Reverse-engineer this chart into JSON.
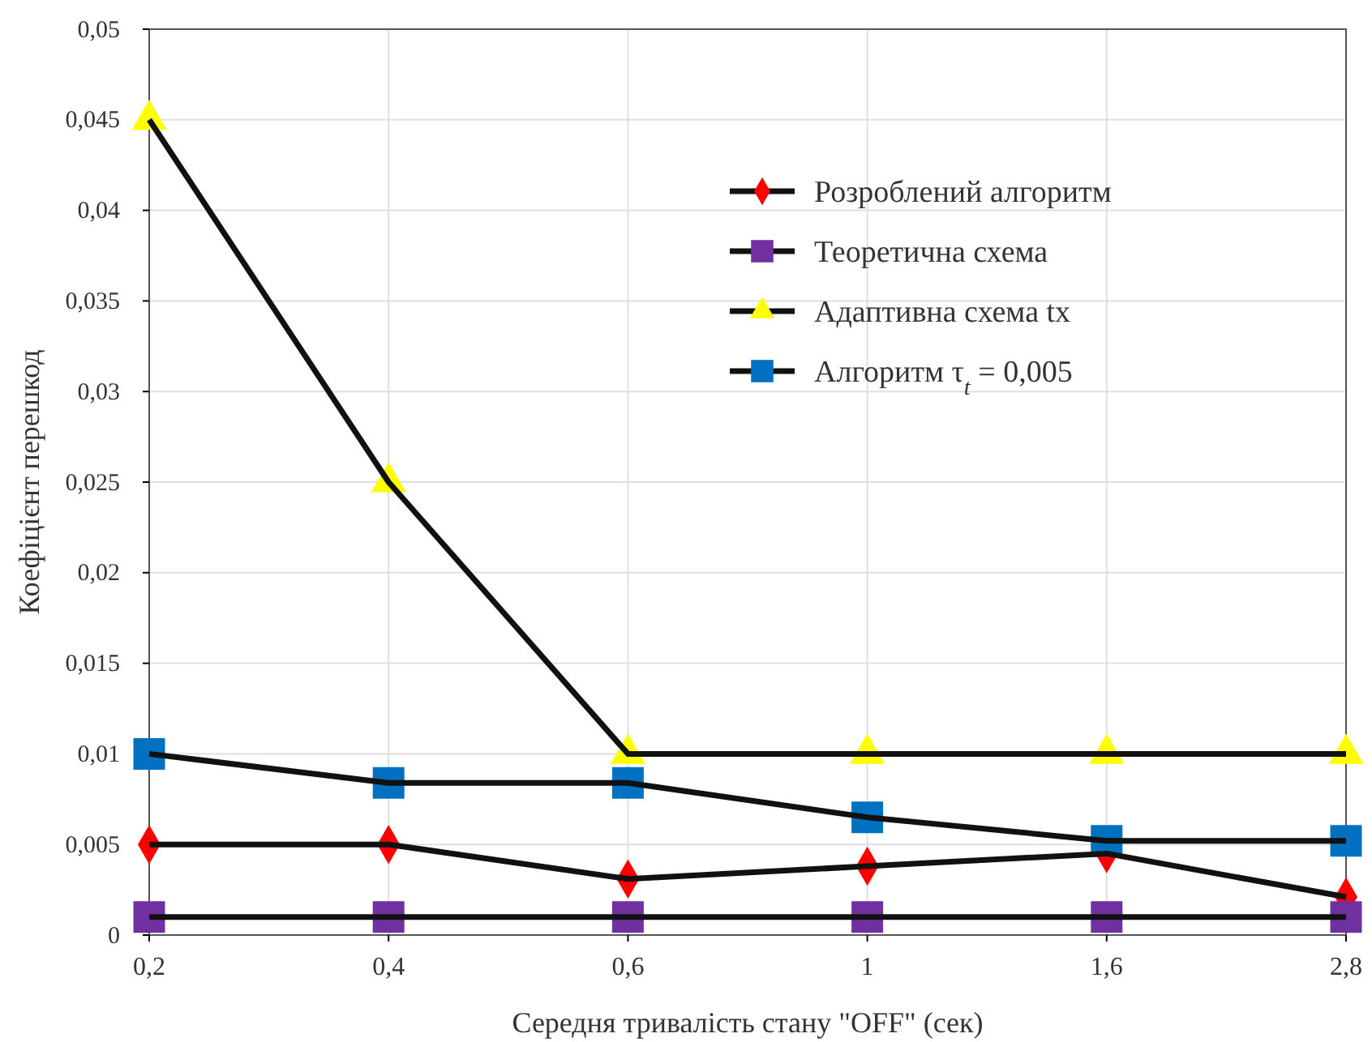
{
  "chart_data": {
    "type": "line",
    "xlabel": "Середня тривалість стану \"OFF\" (сек)",
    "ylabel": "Коефіцієнт перешкод",
    "categories": [
      "0,2",
      "0,4",
      "0,6",
      "1",
      "1,6",
      "2,8"
    ],
    "series": [
      {
        "name": "Розроблений алгоритм",
        "color": "#ff0000",
        "marker": "diamond",
        "values": [
          0.005,
          0.005,
          0.0031,
          0.0038,
          0.0045,
          0.0021
        ]
      },
      {
        "name": "Теоретична схема",
        "color": "#7030a0",
        "marker": "square",
        "values": [
          0.001,
          0.001,
          0.001,
          0.001,
          0.001,
          0.001
        ]
      },
      {
        "name": "Адаптивна схема tx",
        "color": "#ffff00",
        "marker": "triangle",
        "values": [
          0.045,
          0.025,
          0.01,
          0.01,
          0.01,
          0.01
        ]
      },
      {
        "name": "Алгоритм τ$_{t}$ = 0,005",
        "color": "#0070c0",
        "marker": "square",
        "values": [
          0.01,
          0.0084,
          0.0084,
          0.0065,
          0.0052,
          0.0052
        ]
      }
    ],
    "ylim": [
      0,
      0.05
    ],
    "yticks": [
      0,
      {
        "value": 0.005,
        "label": "0,005"
      },
      {
        "value": 0.01,
        "label": "0,01"
      },
      {
        "value": 0.015,
        "label": "0,015"
      },
      {
        "value": 0.02,
        "label": "0,02"
      },
      {
        "value": 0.025,
        "label": "0,025"
      },
      {
        "value": 0.03,
        "label": "0,03"
      },
      {
        "value": 0.035,
        "label": "0,035"
      },
      {
        "value": 0.04,
        "label": "0,04"
      },
      {
        "value": 0.045,
        "label": "0,045"
      },
      {
        "value": 0.05,
        "label": "0,05"
      }
    ],
    "grid": true,
    "legend": "top right",
    "line_style": "solid"
  }
}
